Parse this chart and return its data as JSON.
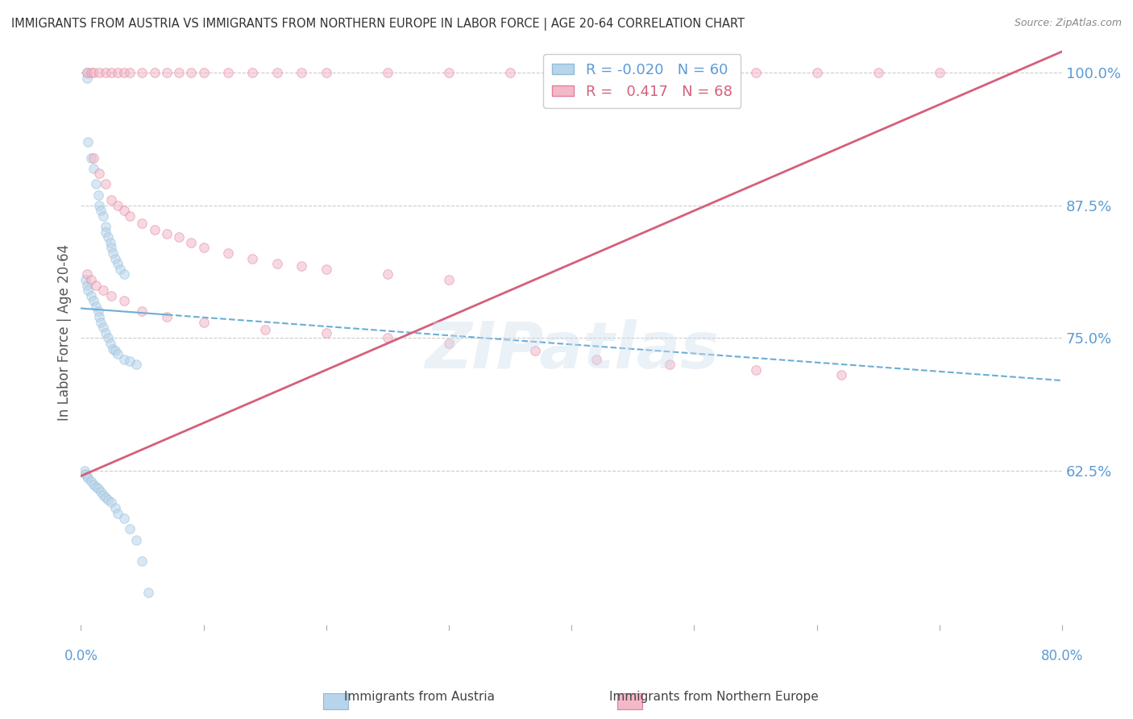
{
  "title": "IMMIGRANTS FROM AUSTRIA VS IMMIGRANTS FROM NORTHERN EUROPE IN LABOR FORCE | AGE 20-64 CORRELATION CHART",
  "source": "Source: ZipAtlas.com",
  "ylabel": "In Labor Force | Age 20-64",
  "watermark": "ZIPatlas",
  "austria_scatter": {
    "color": "#b8d4ea",
    "edge_color": "#90bcd8",
    "x": [
      0.5,
      0.5,
      0.6,
      0.8,
      1.0,
      1.2,
      1.4,
      1.5,
      1.6,
      1.8,
      2.0,
      2.0,
      2.2,
      2.4,
      2.5,
      2.6,
      2.8,
      3.0,
      3.2,
      3.5,
      0.4,
      0.5,
      0.6,
      0.8,
      1.0,
      1.2,
      1.4,
      1.5,
      1.6,
      1.8,
      2.0,
      2.2,
      2.4,
      2.6,
      2.8,
      3.0,
      3.5,
      4.0,
      4.5,
      0.3,
      0.4,
      0.5,
      0.6,
      0.8,
      1.0,
      1.2,
      1.4,
      1.6,
      1.8,
      2.0,
      2.2,
      2.5,
      2.8,
      3.0,
      3.5,
      4.0,
      4.5,
      5.0,
      5.5
    ],
    "y": [
      1.0,
      0.995,
      0.935,
      0.92,
      0.91,
      0.895,
      0.885,
      0.875,
      0.87,
      0.865,
      0.855,
      0.85,
      0.845,
      0.84,
      0.835,
      0.83,
      0.825,
      0.82,
      0.815,
      0.81,
      0.805,
      0.8,
      0.795,
      0.79,
      0.785,
      0.78,
      0.775,
      0.77,
      0.765,
      0.76,
      0.755,
      0.75,
      0.745,
      0.74,
      0.738,
      0.735,
      0.73,
      0.728,
      0.725,
      0.625,
      0.622,
      0.62,
      0.618,
      0.615,
      0.612,
      0.61,
      0.608,
      0.605,
      0.602,
      0.6,
      0.598,
      0.595,
      0.59,
      0.585,
      0.58,
      0.57,
      0.56,
      0.54,
      0.51
    ]
  },
  "northern_scatter": {
    "color": "#f4b8c8",
    "edge_color": "#e0809a",
    "x": [
      0.5,
      0.8,
      1.0,
      1.5,
      2.0,
      2.5,
      3.0,
      3.5,
      4.0,
      5.0,
      6.0,
      7.0,
      8.0,
      9.0,
      10.0,
      12.0,
      14.0,
      16.0,
      18.0,
      20.0,
      25.0,
      30.0,
      35.0,
      40.0,
      45.0,
      50.0,
      55.0,
      60.0,
      65.0,
      70.0,
      1.0,
      1.5,
      2.0,
      2.5,
      3.0,
      3.5,
      4.0,
      5.0,
      6.0,
      7.0,
      8.0,
      9.0,
      10.0,
      12.0,
      14.0,
      16.0,
      18.0,
      20.0,
      25.0,
      30.0,
      0.5,
      0.8,
      1.2,
      1.8,
      2.5,
      3.5,
      5.0,
      7.0,
      10.0,
      15.0,
      20.0,
      25.0,
      30.0,
      37.0,
      42.0,
      48.0,
      55.0,
      62.0
    ],
    "y": [
      1.0,
      1.0,
      1.0,
      1.0,
      1.0,
      1.0,
      1.0,
      1.0,
      1.0,
      1.0,
      1.0,
      1.0,
      1.0,
      1.0,
      1.0,
      1.0,
      1.0,
      1.0,
      1.0,
      1.0,
      1.0,
      1.0,
      1.0,
      1.0,
      1.0,
      1.0,
      1.0,
      1.0,
      1.0,
      1.0,
      0.92,
      0.905,
      0.895,
      0.88,
      0.875,
      0.87,
      0.865,
      0.858,
      0.852,
      0.848,
      0.845,
      0.84,
      0.835,
      0.83,
      0.825,
      0.82,
      0.818,
      0.815,
      0.81,
      0.805,
      0.81,
      0.805,
      0.8,
      0.795,
      0.79,
      0.785,
      0.775,
      0.77,
      0.765,
      0.758,
      0.755,
      0.75,
      0.745,
      0.738,
      0.73,
      0.725,
      0.72,
      0.715
    ]
  },
  "trendline_blue": {
    "x_start": 0.0,
    "x_end": 7.0,
    "y_start": 0.778,
    "y_end": 0.772,
    "color": "#6baed6",
    "x_dash_start": 7.0,
    "x_dash_end": 80.0,
    "y_dash_start": 0.772,
    "y_dash_end": 0.71
  },
  "trendline_pink": {
    "x_start": 0.0,
    "x_end": 80.0,
    "y_start": 0.62,
    "y_end": 1.02,
    "color": "#d4607a"
  },
  "y_ticks": [
    0.625,
    0.75,
    0.875,
    1.0
  ],
  "y_tick_labels": [
    "62.5%",
    "75.0%",
    "87.5%",
    "100.0%"
  ],
  "x_ticks_pct": [
    0.0,
    10.0,
    20.0,
    30.0,
    40.0,
    50.0,
    60.0,
    70.0,
    80.0
  ],
  "xlim_pct": [
    0.0,
    80.0
  ],
  "ylim": [
    0.48,
    1.03
  ],
  "background_color": "#ffffff",
  "grid_color": "#cccccc",
  "axis_label_color": "#5b9bd5",
  "title_color": "#333333",
  "watermark_color": "#ccdded",
  "scatter_size": 70,
  "scatter_alpha": 0.55
}
